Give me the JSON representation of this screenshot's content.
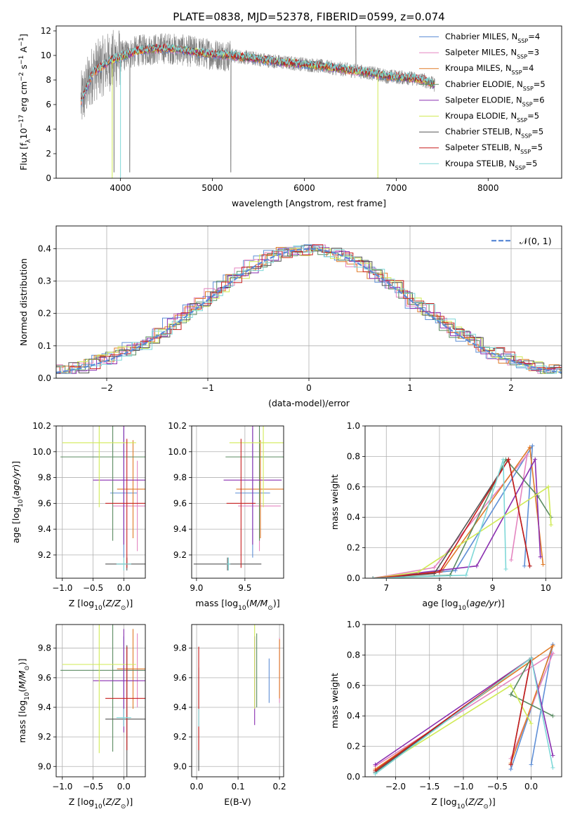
{
  "figure": {
    "title": "PLATE=0838, MJD=52378, FIBERID=0599, z=0.074"
  },
  "colors": {
    "chabrier_miles": "#5f8fd6",
    "salpeter_miles": "#e485c0",
    "kroupa_miles": "#e07b28",
    "chabrier_elodie": "#5b8c62",
    "salpeter_elodie": "#8a2fb0",
    "kroupa_elodie": "#d0ea55",
    "chabrier_stelib": "#555555",
    "salpeter_stelib": "#c81e1e",
    "kroupa_stelib": "#7fd8d8",
    "data": "#808080",
    "normal": "#5b8ad6"
  },
  "chart_data": [
    {
      "id": "spectrum",
      "type": "line",
      "xlabel": "wavelength [Angstrom, rest frame]",
      "ylabel": "Flux [f_λ10^-17 erg cm^-2 s^-1 A^-1]",
      "xlim": [
        3300,
        8800
      ],
      "ylim": [
        0,
        12.4
      ],
      "xticks": [
        "4000",
        "5000",
        "6000",
        "7000",
        "8000"
      ],
      "yticks": [
        "0",
        "2",
        "4",
        "6",
        "8",
        "10",
        "12"
      ],
      "legend_position": "upper-right",
      "data_x": [
        3570,
        3700,
        3900,
        4000,
        4200,
        4500,
        4800,
        5000,
        5200,
        5500,
        5800,
        6000,
        6300,
        6500,
        6700,
        6900,
        7100,
        7300,
        7420
      ],
      "data_y": [
        6.2,
        8.6,
        9.6,
        9.9,
        10.4,
        10.6,
        10.3,
        10.1,
        10.0,
        9.7,
        9.4,
        9.3,
        9.0,
        8.8,
        8.6,
        8.3,
        8.2,
        8.0,
        7.6
      ],
      "series": [
        {
          "name": "Chabrier MILES, N_SSP=4"
        },
        {
          "name": "Salpeter MILES, N_SSP=3"
        },
        {
          "name": "Kroupa MILES, N_SSP=4"
        },
        {
          "name": "Chabrier ELODIE, N_SSP=5"
        },
        {
          "name": "Salpeter ELODIE, N_SSP=6"
        },
        {
          "name": "Kroupa ELODIE, N_SSP=5"
        },
        {
          "name": "Chabrier STELIB, N_SSP=5"
        },
        {
          "name": "Salpeter STELIB, N_SSP=5"
        },
        {
          "name": "Kroupa STELIB, N_SSP=5"
        }
      ]
    },
    {
      "id": "residuals",
      "type": "line",
      "xlabel": "(data-model)/error",
      "ylabel": "Normed distribution",
      "xlim": [
        -2.5,
        2.5
      ],
      "ylim": [
        0,
        0.47
      ],
      "xticks": [
        "−2",
        "−1",
        "0",
        "1",
        "2"
      ],
      "yticks": [
        "0.0",
        "0.1",
        "0.2",
        "0.3",
        "0.4"
      ],
      "legend": "𝒩(0, 1)",
      "hist_bin_width": 0.1
    },
    {
      "id": "age-vs-z",
      "type": "scatter",
      "xlabel": "Z [log₁₀(Z/Z⊙)]",
      "ylabel": "age  [log₁₀(age/yr)]",
      "xlim": [
        -1.1,
        0.35
      ],
      "ylim": [
        9.02,
        10.2
      ],
      "xticks": [
        "−1.0",
        "−0.5",
        "0.0"
      ],
      "yticks": [
        "9.2",
        "9.4",
        "9.6",
        "9.8",
        "10.0",
        "10.2"
      ]
    },
    {
      "id": "age-vs-mass",
      "type": "scatter",
      "xlabel": "mass [log₁₀(M/M⊙)]",
      "xlim": [
        8.95,
        9.9
      ],
      "ylim": [
        9.02,
        10.2
      ],
      "xticks": [
        "9.0",
        "9.5"
      ],
      "yticks": [
        "9.2",
        "9.4",
        "9.6",
        "9.8",
        "10.0",
        "10.2"
      ]
    },
    {
      "id": "weight-vs-age",
      "type": "line",
      "xlabel": "age  [log₁₀(age/yr)]",
      "ylabel": "mass weight",
      "xlim": [
        6.6,
        10.3
      ],
      "ylim": [
        0,
        1
      ],
      "xticks": [
        "7",
        "8",
        "9",
        "10"
      ],
      "yticks": [
        "0.0",
        "0.2",
        "0.4",
        "0.6",
        "0.8",
        "1.0"
      ]
    },
    {
      "id": "mass-vs-z",
      "type": "scatter",
      "xlabel": "Z [log₁₀(Z/Z⊙)]",
      "ylabel": "mass [log₁₀(M/M⊙)]",
      "xlim": [
        -1.1,
        0.35
      ],
      "ylim": [
        8.93,
        9.96
      ],
      "xticks": [
        "−1.0",
        "−0.5",
        "0.0"
      ],
      "yticks": [
        "9.0",
        "9.2",
        "9.4",
        "9.6",
        "9.8"
      ]
    },
    {
      "id": "mass-vs-ebv",
      "type": "scatter",
      "xlabel": "E(B-V)",
      "xlim": [
        -0.012,
        0.21
      ],
      "ylim": [
        8.93,
        9.96
      ],
      "xticks": [
        "0.0",
        "0.1",
        "0.2"
      ],
      "yticks": [
        "9.0",
        "9.2",
        "9.4",
        "9.6",
        "9.8"
      ]
    },
    {
      "id": "weight-vs-z",
      "type": "line",
      "xlabel": "Z [log₁₀(Z/Z⊙)]",
      "ylabel": "mass weight",
      "xlim": [
        -2.45,
        0.45
      ],
      "ylim": [
        0,
        1
      ],
      "xticks": [
        "−2.0",
        "−1.5",
        "−1.0",
        "−0.5",
        "0.0"
      ],
      "yticks": [
        "0.0",
        "0.2",
        "0.4",
        "0.6",
        "0.8",
        "1.0"
      ]
    }
  ],
  "models": [
    {
      "key": "chabrier_miles",
      "age": 9.68,
      "age_err": 0.5,
      "z": 0.0,
      "z_err": 0.22,
      "mass": 9.58,
      "mass_err": 0.18,
      "m_err": 0.3,
      "ebv": 0.175,
      "ebv_err": 0.15,
      "ages": [
        8.3,
        9.75,
        9.6
      ],
      "w": [
        0.05,
        0.87,
        0.08
      ],
      "zs": [
        -0.3,
        0.32,
        0.0
      ]
    },
    {
      "key": "salpeter_miles",
      "age": 9.58,
      "age_err": 0.35,
      "z": 0.22,
      "z_err": 0.4,
      "mass": 9.65,
      "mass_err": 0.22,
      "m_err": 0.25,
      "ebv": 0.2,
      "ebv_err": 0.22,
      "ages": [
        7.9,
        9.65,
        9.35
      ],
      "w": [
        0.07,
        0.81,
        0.12
      ],
      "zs": [
        -2.3,
        0.32,
        -0.3
      ]
    },
    {
      "key": "kroupa_miles",
      "age": 9.71,
      "age_err": 0.38,
      "z": 0.15,
      "z_err": 0.26,
      "mass": 9.66,
      "mass_err": 0.25,
      "m_err": 0.27,
      "ebv": 0.2,
      "ebv_err": 0.2,
      "ages": [
        8.05,
        9.7,
        9.95
      ],
      "w": [
        0.05,
        0.86,
        0.09
      ],
      "zs": [
        -2.3,
        0.32,
        -0.3
      ]
    },
    {
      "key": "chabrier_elodie",
      "age": 9.96,
      "age_err": 0.65,
      "z": -0.18,
      "z_err": 0.85,
      "mass": 9.65,
      "mass_err": 0.35,
      "m_err": 0.55,
      "ebv": 0.145,
      "ebv_err": 0.25,
      "ages": [
        8.2,
        9.25,
        9.85,
        10.1
      ],
      "w": [
        0.02,
        0.78,
        0.54,
        0.4
      ],
      "zs": [
        -2.3,
        0.0,
        -0.3,
        0.32
      ]
    },
    {
      "key": "salpeter_elodie",
      "age": 9.78,
      "age_err": 0.5,
      "z": 0.0,
      "z_err": 0.5,
      "mass": 9.58,
      "mass_err": 0.3,
      "m_err": 0.35,
      "ebv": 0.14,
      "ebv_err": 0.3,
      "ages": [
        8.7,
        9.8,
        9.9
      ],
      "w": [
        0.08,
        0.78,
        0.14
      ],
      "zs": [
        -2.3,
        0.0,
        0.32
      ]
    },
    {
      "key": "kroupa_elodie",
      "age": 10.07,
      "age_err": 0.5,
      "z": -0.4,
      "z_err": 0.6,
      "mass": 9.69,
      "mass_err": 0.35,
      "m_err": 0.6,
      "ebv": 0.14,
      "ebv_err": 0.3,
      "ages": [
        7.6,
        10.05,
        10.1
      ],
      "w": [
        0.04,
        0.6,
        0.35
      ],
      "zs": [
        -2.3,
        -0.3,
        0.0
      ]
    },
    {
      "key": "chabrier_stelib",
      "age": 9.13,
      "age_err": 0.05,
      "z": 0.05,
      "z_err": 0.35,
      "mass": 9.32,
      "mass_err": 0.35,
      "m_err": 0.5,
      "ebv": 0.005,
      "ebv_err": 0.35,
      "ages": [
        7.9,
        9.3,
        9.7
      ],
      "w": [
        0.03,
        0.78,
        0.08
      ],
      "zs": [
        -2.3,
        0.0,
        -0.3
      ]
    },
    {
      "key": "salpeter_stelib",
      "age": 9.6,
      "age_err": 0.5,
      "z": 0.05,
      "z_err": 0.35,
      "mass": 9.46,
      "mass_err": 0.15,
      "m_err": 0.35,
      "ebv": 0.005,
      "ebv_err": 0.35,
      "ages": [
        8.0,
        9.3,
        9.7
      ],
      "w": [
        0.04,
        0.78,
        0.08
      ],
      "zs": [
        -2.3,
        0.0,
        -0.3
      ]
    },
    {
      "key": "kroupa_stelib",
      "age": 9.13,
      "age_err": 0.05,
      "z": 0.0,
      "z_err": 0.12,
      "mass": 9.33,
      "mass_err": 0.02,
      "m_err": 0.06,
      "ebv": 0.005,
      "ebv_err": 0.06,
      "ages": [
        8.5,
        9.2,
        9.25
      ],
      "w": [
        0.02,
        0.78,
        0.06
      ],
      "zs": [
        -2.3,
        0.0,
        0.32
      ]
    }
  ]
}
